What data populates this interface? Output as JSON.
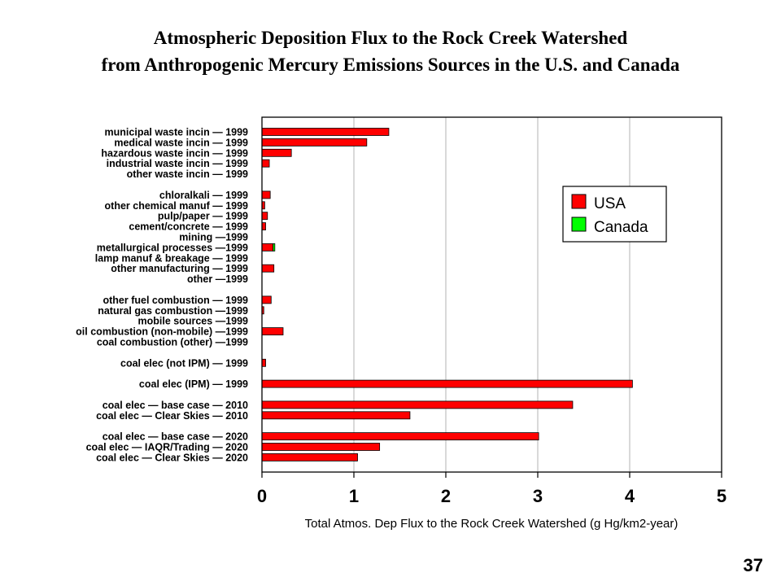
{
  "title_line1": "Atmospheric Deposition Flux to the Rock Creek Watershed",
  "title_line2": "from Anthropogenic Mercury Emissions Sources in the U.S. and Canada",
  "page_number": "37",
  "colors": {
    "usa": "#ff0000",
    "canada": "#00ff00",
    "gridline": "#b3b3b3",
    "plot_border": "#000000"
  },
  "chart_data": {
    "type": "bar",
    "orientation": "horizontal",
    "stacked": true,
    "title": "Atmospheric Deposition Flux to the Rock Creek Watershed from Anthropogenic Mercury Emissions Sources in the U.S. and Canada",
    "xlabel": "Total Atmos. Dep Flux to the Rock Creek Watershed (g Hg/km2-year)",
    "ylabel": "",
    "xlim": [
      0,
      5
    ],
    "xticks": [
      "0",
      "1",
      "2",
      "3",
      "4",
      "5"
    ],
    "grid": "vertical",
    "legend_position": "top-right",
    "categories": [
      "municipal waste incin -- 1999",
      "medical waste incin -- 1999",
      "hazardous waste incin -- 1999",
      "industrial waste incin -- 1999",
      "other waste incin -- 1999",
      "",
      "chloralkali -- 1999",
      "other chemical manuf -- 1999",
      "pulp/paper -- 1999",
      "cement/concrete -- 1999",
      "mining --1999",
      "metallurgical processes --1999",
      "lamp manuf & breakage -- 1999",
      "other manufacturing -- 1999",
      "other --1999",
      "",
      "other fuel combustion -- 1999",
      "natural gas combustion --1999",
      "mobile sources --1999",
      "oil combustion (non-mobile) --1999",
      "coal combustion (other) --1999",
      "",
      "coal elec (not IPM) -- 1999",
      "",
      "coal elec (IPM) -- 1999",
      "",
      "coal elec -- base case -- 2010",
      "coal elec -- Clear Skies -- 2010",
      "",
      "coal elec -- base case -- 2020",
      "coal elec -- IAQR/Trading -- 2020",
      "coal elec -- Clear Skies -- 2020"
    ],
    "series": [
      {
        "name": "USA",
        "color": "#ff0000",
        "values": [
          1.38,
          1.14,
          0.32,
          0.08,
          0,
          null,
          0.09,
          0.03,
          0.06,
          0.04,
          0,
          0.12,
          0,
          0.13,
          0,
          null,
          0.1,
          0.02,
          0,
          0.23,
          0,
          null,
          0.04,
          null,
          4.03,
          null,
          3.38,
          1.61,
          null,
          3.01,
          1.28,
          1.04
        ]
      },
      {
        "name": "Canada",
        "color": "#00ff00",
        "values": [
          0,
          0,
          0,
          0,
          0,
          null,
          0,
          0,
          0,
          0,
          0,
          0.02,
          0,
          0,
          0,
          null,
          0,
          0,
          0,
          0,
          0,
          null,
          0,
          null,
          0,
          null,
          0,
          0,
          null,
          0,
          0,
          0
        ]
      }
    ]
  }
}
